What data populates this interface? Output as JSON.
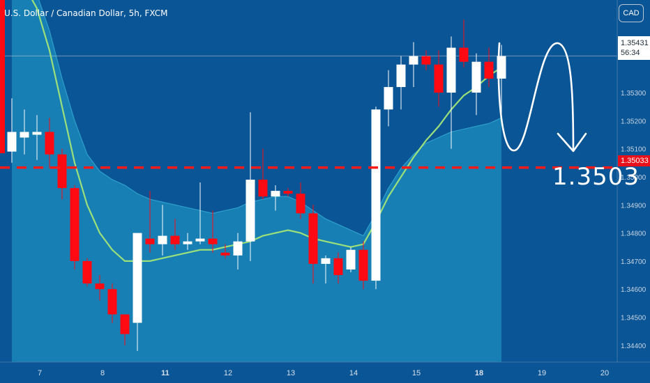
{
  "header": {
    "title": "U.S. Dollar / Canadian Dollar, 5h, FXCM",
    "currency_button": "CAD"
  },
  "price_box": {
    "price": "1.35431",
    "countdown": "56:34"
  },
  "level_box": {
    "label": "1.35033"
  },
  "annotation": {
    "target_label": "1.3503"
  },
  "colors": {
    "background": "#0a5596",
    "area_fill": "#1a87b8",
    "bull_candle": "#ffffff",
    "bear_candle": "#ff0a12",
    "ema_line": "#9be07a",
    "level_line": "#ff1a1a"
  },
  "chart_data": {
    "type": "candlestick",
    "title": "U.S. Dollar / Canadian Dollar, 5h, FXCM",
    "y_axis": {
      "ylim": [
        1.3434,
        1.3563
      ],
      "ticks": [
        "1.35300",
        "1.35200",
        "1.35100",
        "1.35000",
        "1.34900",
        "1.34800",
        "1.34700",
        "1.34600",
        "1.34500",
        "1.34400"
      ],
      "tick_values": [
        1.353,
        1.352,
        1.351,
        1.35,
        1.349,
        1.348,
        1.347,
        1.346,
        1.345,
        1.344
      ]
    },
    "x_axis": {
      "date_labels": [
        {
          "label": "7",
          "bold": false,
          "bar": 2
        },
        {
          "label": "8",
          "bold": false,
          "bar": 7
        },
        {
          "label": "11",
          "bold": true,
          "bar": 12
        },
        {
          "label": "12",
          "bold": false,
          "bar": 17
        },
        {
          "label": "13",
          "bold": false,
          "bar": 22
        },
        {
          "label": "14",
          "bold": false,
          "bar": 27
        },
        {
          "label": "15",
          "bold": false,
          "bar": 32
        },
        {
          "label": "18",
          "bold": true,
          "bar": 37
        },
        {
          "label": "19",
          "bold": false,
          "bar": 42
        },
        {
          "label": "20",
          "bold": false,
          "bar": 47
        }
      ]
    },
    "candles": [
      {
        "o": 1.3509,
        "h": 1.3528,
        "l": 1.3505,
        "c": 1.3516
      },
      {
        "o": 1.3514,
        "h": 1.3524,
        "l": 1.3508,
        "c": 1.3516
      },
      {
        "o": 1.3515,
        "h": 1.3522,
        "l": 1.3506,
        "c": 1.3516
      },
      {
        "o": 1.3516,
        "h": 1.3521,
        "l": 1.3503,
        "c": 1.3508
      },
      {
        "o": 1.3508,
        "h": 1.351,
        "l": 1.3492,
        "c": 1.3496
      },
      {
        "o": 1.3496,
        "h": 1.3497,
        "l": 1.3467,
        "c": 1.347
      },
      {
        "o": 1.347,
        "h": 1.3471,
        "l": 1.3461,
        "c": 1.3462
      },
      {
        "o": 1.3462,
        "h": 1.3465,
        "l": 1.3456,
        "c": 1.346
      },
      {
        "o": 1.346,
        "h": 1.3462,
        "l": 1.3448,
        "c": 1.3451
      },
      {
        "o": 1.3451,
        "h": 1.3451,
        "l": 1.344,
        "c": 1.3444
      },
      {
        "o": 1.3448,
        "h": 1.348,
        "l": 1.3438,
        "c": 1.348
      },
      {
        "o": 1.3478,
        "h": 1.3495,
        "l": 1.3473,
        "c": 1.3476
      },
      {
        "o": 1.3476,
        "h": 1.349,
        "l": 1.3472,
        "c": 1.3479
      },
      {
        "o": 1.3479,
        "h": 1.3485,
        "l": 1.3474,
        "c": 1.3476
      },
      {
        "o": 1.3476,
        "h": 1.348,
        "l": 1.3474,
        "c": 1.3477
      },
      {
        "o": 1.3477,
        "h": 1.3498,
        "l": 1.3476,
        "c": 1.3478
      },
      {
        "o": 1.3478,
        "h": 1.3488,
        "l": 1.3473,
        "c": 1.3476
      },
      {
        "o": 1.3473,
        "h": 1.3476,
        "l": 1.3471,
        "c": 1.3472
      },
      {
        "o": 1.3472,
        "h": 1.348,
        "l": 1.3467,
        "c": 1.3477
      },
      {
        "o": 1.3477,
        "h": 1.3523,
        "l": 1.347,
        "c": 1.3499
      },
      {
        "o": 1.3499,
        "h": 1.351,
        "l": 1.3492,
        "c": 1.3493
      },
      {
        "o": 1.3493,
        "h": 1.3497,
        "l": 1.3488,
        "c": 1.3495
      },
      {
        "o": 1.3495,
        "h": 1.3496,
        "l": 1.3493,
        "c": 1.3494
      },
      {
        "o": 1.3494,
        "h": 1.3498,
        "l": 1.3485,
        "c": 1.3487
      },
      {
        "o": 1.3487,
        "h": 1.349,
        "l": 1.3462,
        "c": 1.3469
      },
      {
        "o": 1.3469,
        "h": 1.3472,
        "l": 1.3462,
        "c": 1.3471
      },
      {
        "o": 1.3471,
        "h": 1.3473,
        "l": 1.3462,
        "c": 1.3465
      },
      {
        "o": 1.3467,
        "h": 1.3475,
        "l": 1.3466,
        "c": 1.3474
      },
      {
        "o": 1.3474,
        "h": 1.3477,
        "l": 1.346,
        "c": 1.3463
      },
      {
        "o": 1.3463,
        "h": 1.3525,
        "l": 1.346,
        "c": 1.3524
      },
      {
        "o": 1.3524,
        "h": 1.3538,
        "l": 1.3518,
        "c": 1.3532
      },
      {
        "o": 1.3532,
        "h": 1.3543,
        "l": 1.3524,
        "c": 1.354
      },
      {
        "o": 1.354,
        "h": 1.3548,
        "l": 1.3532,
        "c": 1.3543
      },
      {
        "o": 1.3543,
        "h": 1.3545,
        "l": 1.3538,
        "c": 1.354
      },
      {
        "o": 1.354,
        "h": 1.3545,
        "l": 1.3525,
        "c": 1.353
      },
      {
        "o": 1.353,
        "h": 1.355,
        "l": 1.351,
        "c": 1.3546
      },
      {
        "o": 1.3546,
        "h": 1.3556,
        "l": 1.3539,
        "c": 1.3541
      },
      {
        "o": 1.353,
        "h": 1.3544,
        "l": 1.3522,
        "c": 1.3541
      },
      {
        "o": 1.3541,
        "h": 1.3546,
        "l": 1.3532,
        "c": 1.3535
      },
      {
        "o": 1.3535,
        "h": 1.3547,
        "l": 1.352,
        "c": 1.3543
      }
    ],
    "ema": [
      1.3575,
      1.3568,
      1.356,
      1.3545,
      1.3525,
      1.3505,
      1.349,
      1.348,
      1.3474,
      1.347,
      1.347,
      1.347,
      1.3471,
      1.3472,
      1.3473,
      1.3474,
      1.3474,
      1.3475,
      1.3476,
      1.3477,
      1.3479,
      1.348,
      1.3481,
      1.348,
      1.3478,
      1.3477,
      1.3476,
      1.3475,
      1.3476,
      1.3484,
      1.3493,
      1.35,
      1.3507,
      1.3513,
      1.3518,
      1.3524,
      1.3529,
      1.3532,
      1.3536,
      1.3539
    ],
    "upper_band": [
      1.358,
      1.3575,
      1.3565,
      1.3552,
      1.3535,
      1.352,
      1.3508,
      1.3502,
      1.3499,
      1.3497,
      1.3494,
      1.3492,
      1.3491,
      1.349,
      1.3489,
      1.3488,
      1.3487,
      1.3488,
      1.3489,
      1.3491,
      1.3492,
      1.3493,
      1.3493,
      1.3491,
      1.3488,
      1.3485,
      1.3483,
      1.3481,
      1.3479,
      1.3487,
      1.3496,
      1.3503,
      1.3508,
      1.3512,
      1.3514,
      1.3516,
      1.3517,
      1.3518,
      1.3519,
      1.3521
    ],
    "horizontal_level": 1.35033,
    "current_price": 1.35431
  }
}
